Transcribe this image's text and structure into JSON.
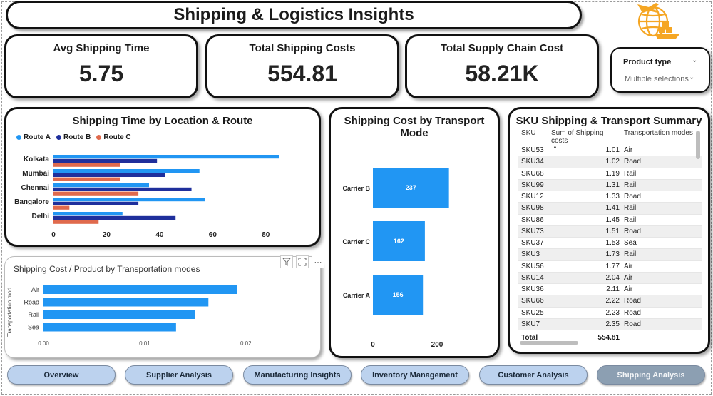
{
  "title": "Shipping & Logistics Insights",
  "colors": {
    "route_a": "#2196f3",
    "route_b": "#1f2f9c",
    "route_c": "#e06a4d",
    "bar_blue": "#2196f3",
    "active_nav": "#8c9fb2",
    "nav": "#bcd2ee",
    "logo_orange": "#f5a623"
  },
  "icons": {
    "logo": "globe-shipping-icon",
    "filter": "filter-icon",
    "focus": "focus-mode-icon",
    "more": "more-options-icon",
    "dropdown": "chevron-down-icon"
  },
  "kpis": [
    {
      "label": "Avg Shipping Time",
      "value": "5.75"
    },
    {
      "label": "Total Shipping Costs",
      "value": "554.81"
    },
    {
      "label": "Total Supply Chain Cost",
      "value": "58.21K"
    }
  ],
  "slicer": {
    "title": "Product type",
    "value": "Multiple selections"
  },
  "chart_data": [
    {
      "type": "bar",
      "orientation": "horizontal",
      "title": "Shipping Time by Location & Route",
      "categories": [
        "Kolkata",
        "Mumbai",
        "Chennai",
        "Bangalore",
        "Delhi"
      ],
      "series": [
        {
          "name": "Route A",
          "values": [
            85,
            55,
            36,
            57,
            26
          ]
        },
        {
          "name": "Route B",
          "values": [
            39,
            42,
            52,
            32,
            46
          ]
        },
        {
          "name": "Route C",
          "values": [
            25,
            25,
            32,
            6,
            17
          ]
        }
      ],
      "x_ticks": [
        "0",
        "20",
        "40",
        "60",
        "80"
      ],
      "xlim": [
        0,
        90
      ],
      "legend": "top-left"
    },
    {
      "type": "bar",
      "orientation": "horizontal",
      "title": "Shipping Cost by Transport Mode",
      "categories": [
        "Carrier B",
        "Carrier C",
        "Carrier A"
      ],
      "values": [
        237,
        162,
        156
      ],
      "data_labels": [
        "237",
        "162",
        "156"
      ],
      "x_ticks": [
        "0",
        "200"
      ],
      "xlim": [
        0,
        240
      ]
    },
    {
      "type": "bar",
      "orientation": "horizontal",
      "title": "Shipping Cost / Product by Transportation modes",
      "ylabel": "Transportation mod...",
      "categories": [
        "Air",
        "Road",
        "Rail",
        "Sea"
      ],
      "values": [
        0.0191,
        0.0163,
        0.015,
        0.0131
      ],
      "x_ticks": [
        "0.00",
        "0.01",
        "0.02"
      ],
      "xlim": [
        0,
        0.0265
      ]
    }
  ],
  "sku_table": {
    "title": "SKU Shipping & Transport Summary",
    "headers": [
      "SKU",
      "Sum of Shipping costs",
      "Transportation modes"
    ],
    "rows": [
      [
        "SKU53",
        "1.01",
        "Air"
      ],
      [
        "SKU34",
        "1.02",
        "Road"
      ],
      [
        "SKU68",
        "1.19",
        "Rail"
      ],
      [
        "SKU99",
        "1.31",
        "Rail"
      ],
      [
        "SKU12",
        "1.33",
        "Road"
      ],
      [
        "SKU98",
        "1.41",
        "Rail"
      ],
      [
        "SKU86",
        "1.45",
        "Rail"
      ],
      [
        "SKU73",
        "1.51",
        "Road"
      ],
      [
        "SKU37",
        "1.53",
        "Sea"
      ],
      [
        "SKU3",
        "1.73",
        "Rail"
      ],
      [
        "SKU56",
        "1.77",
        "Air"
      ],
      [
        "SKU14",
        "2.04",
        "Air"
      ],
      [
        "SKU36",
        "2.11",
        "Air"
      ],
      [
        "SKU66",
        "2.22",
        "Road"
      ],
      [
        "SKU25",
        "2.23",
        "Road"
      ],
      [
        "SKU7",
        "2.35",
        "Road"
      ]
    ],
    "total_label": "Total",
    "total_value": "554.81"
  },
  "nav": [
    {
      "label": "Overview",
      "active": false
    },
    {
      "label": "Supplier Analysis",
      "active": false
    },
    {
      "label": "Manufacturing Insights",
      "active": false
    },
    {
      "label": "Inventory Management",
      "active": false
    },
    {
      "label": "Customer Analysis",
      "active": false
    },
    {
      "label": "Shipping Analysis",
      "active": true
    }
  ]
}
